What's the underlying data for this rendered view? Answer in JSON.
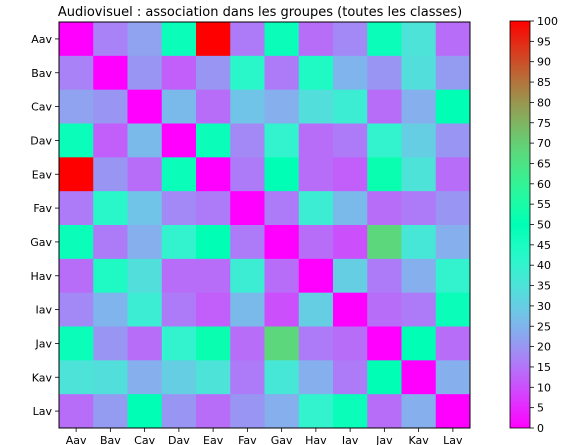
{
  "chart_data": {
    "type": "heatmap",
    "title": "Audiovisuel : association dans les groupes (toutes les classes)",
    "x_labels": [
      "Aav",
      "Bav",
      "Cav",
      "Dav",
      "Eav",
      "Fav",
      "Gav",
      "Hav",
      "Iav",
      "Jav",
      "Kav",
      "Lav"
    ],
    "y_labels": [
      "Aav",
      "Bav",
      "Cav",
      "Dav",
      "Eav",
      "Fav",
      "Gav",
      "Hav",
      "Iav",
      "Jav",
      "Kav",
      "Lav"
    ],
    "values": [
      [
        0,
        17,
        22,
        48,
        100,
        16,
        48,
        14,
        18,
        48,
        35,
        14
      ],
      [
        17,
        0,
        20,
        12,
        20,
        42,
        16,
        44,
        25,
        20,
        34,
        21
      ],
      [
        22,
        20,
        0,
        26,
        14,
        28,
        24,
        34,
        38,
        14,
        24,
        50
      ],
      [
        48,
        12,
        26,
        0,
        48,
        18,
        40,
        14,
        16,
        40,
        30,
        20
      ],
      [
        100,
        20,
        14,
        48,
        0,
        16,
        50,
        14,
        12,
        52,
        35,
        14
      ],
      [
        16,
        42,
        28,
        18,
        16,
        0,
        16,
        38,
        26,
        14,
        16,
        20
      ],
      [
        48,
        16,
        24,
        40,
        50,
        16,
        0,
        14,
        10,
        68,
        36,
        24
      ],
      [
        14,
        44,
        34,
        14,
        14,
        38,
        14,
        0,
        30,
        16,
        24,
        40
      ],
      [
        18,
        25,
        38,
        16,
        12,
        26,
        10,
        30,
        0,
        14,
        16,
        48
      ],
      [
        48,
        20,
        14,
        40,
        52,
        14,
        68,
        16,
        14,
        0,
        50,
        14
      ],
      [
        35,
        34,
        24,
        30,
        35,
        16,
        36,
        24,
        16,
        50,
        0,
        24
      ],
      [
        14,
        21,
        50,
        20,
        14,
        20,
        24,
        40,
        48,
        14,
        24,
        0
      ]
    ],
    "colormap": "rainbow",
    "colorbar": {
      "min": 0,
      "max": 100,
      "ticks": [
        "0",
        "5",
        "10",
        "15",
        "20",
        "25",
        "30",
        "35",
        "40",
        "45",
        "50",
        "55",
        "60",
        "65",
        "70",
        "75",
        "80",
        "85",
        "90",
        "95",
        "100"
      ]
    },
    "grid": false
  }
}
